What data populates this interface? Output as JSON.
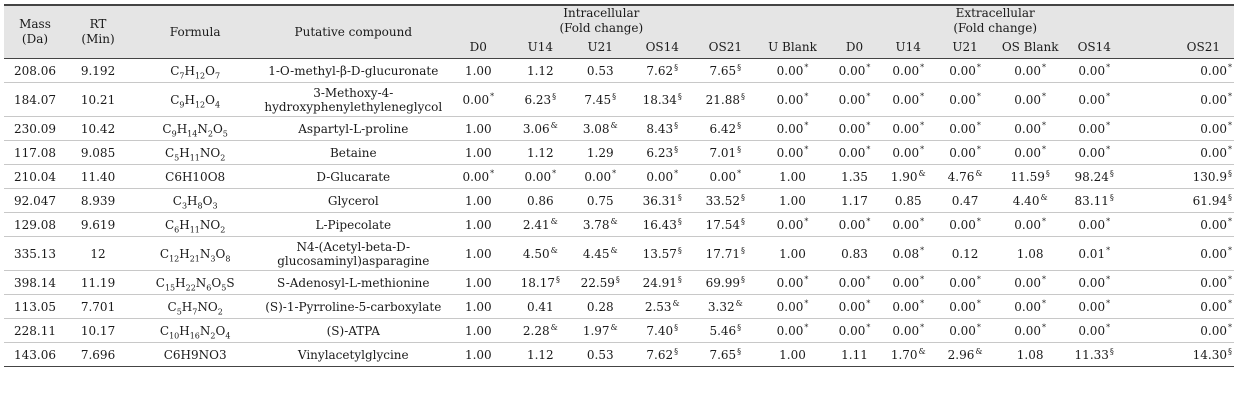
{
  "headers": {
    "mass": "Mass\n(Da)",
    "rt": "RT\n(Min)",
    "formula": "Formula",
    "compound": "Putative compound",
    "intracellular": "Intracellular\n(Fold change)",
    "extracellular": "Extracellular\n(Fold change)",
    "intra_cols": [
      "D0",
      "U14",
      "U21",
      "OS14",
      "OS21"
    ],
    "extra_cols": [
      "U Blank",
      "D0",
      "U14",
      "U21",
      "OS Blank",
      "OS14",
      "OS21"
    ]
  },
  "rows": [
    {
      "mass": "208.06",
      "rt": "9.192",
      "formula": [
        [
          "C",
          ""
        ],
        [
          "7",
          "sub"
        ],
        [
          "H",
          ""
        ],
        [
          "12",
          "sub"
        ],
        [
          "O",
          ""
        ],
        [
          "7",
          "sub"
        ]
      ],
      "compound": "1-O-methyl-β-D-glucuronate",
      "intra": [
        [
          "1.00",
          ""
        ],
        [
          "1.12",
          ""
        ],
        [
          "0.53",
          ""
        ],
        [
          "7.62",
          "§"
        ],
        [
          "7.65",
          "§"
        ]
      ],
      "extra": [
        [
          "0.00",
          "*"
        ],
        [
          "0.00",
          "*"
        ],
        [
          "0.00",
          "*"
        ],
        [
          "0.00",
          "*"
        ],
        [
          "0.00",
          "*"
        ],
        [
          "0.00",
          "*"
        ],
        [
          "0.00",
          "*"
        ]
      ]
    },
    {
      "mass": "184.07",
      "rt": "10.21",
      "formula": [
        [
          "C",
          ""
        ],
        [
          "9",
          "sub"
        ],
        [
          "H",
          ""
        ],
        [
          "12",
          "sub"
        ],
        [
          "O",
          ""
        ],
        [
          "4",
          "sub"
        ]
      ],
      "compound": "3-Methoxy-4-\nhydroxyphenylethyleneglycol",
      "tall": true,
      "intra": [
        [
          "0.00",
          "*"
        ],
        [
          "6.23",
          "§"
        ],
        [
          "7.45",
          "§"
        ],
        [
          "18.34",
          "§"
        ],
        [
          "21.88",
          "§"
        ]
      ],
      "extra": [
        [
          "0.00",
          "*"
        ],
        [
          "0.00",
          "*"
        ],
        [
          "0.00",
          "*"
        ],
        [
          "0.00",
          "*"
        ],
        [
          "0.00",
          "*"
        ],
        [
          "0.00",
          "*"
        ],
        [
          "0.00",
          "*"
        ]
      ]
    },
    {
      "mass": "230.09",
      "rt": "10.42",
      "formula": [
        [
          "C",
          ""
        ],
        [
          "9",
          "sub"
        ],
        [
          "H",
          ""
        ],
        [
          "14",
          "sub"
        ],
        [
          "N",
          ""
        ],
        [
          "2",
          "sub"
        ],
        [
          "O",
          ""
        ],
        [
          "5",
          "sub"
        ]
      ],
      "compound": "Aspartyl-L-proline",
      "intra": [
        [
          "1.00",
          ""
        ],
        [
          "3.06",
          "&"
        ],
        [
          "3.08",
          "&"
        ],
        [
          "8.43",
          "§"
        ],
        [
          "6.42",
          "§"
        ]
      ],
      "extra": [
        [
          "0.00",
          "*"
        ],
        [
          "0.00",
          "*"
        ],
        [
          "0.00",
          "*"
        ],
        [
          "0.00",
          "*"
        ],
        [
          "0.00",
          "*"
        ],
        [
          "0.00",
          "*"
        ],
        [
          "0.00",
          "*"
        ]
      ]
    },
    {
      "mass": "117.08",
      "rt": "9.085",
      "formula": [
        [
          "C",
          ""
        ],
        [
          "5",
          "sub"
        ],
        [
          "H",
          ""
        ],
        [
          "11",
          "sub"
        ],
        [
          "NO",
          ""
        ],
        [
          "2",
          "sub"
        ]
      ],
      "compound": "Betaine",
      "intra": [
        [
          "1.00",
          ""
        ],
        [
          "1.12",
          ""
        ],
        [
          "1.29",
          ""
        ],
        [
          "6.23",
          "§"
        ],
        [
          "7.01",
          "§"
        ]
      ],
      "extra": [
        [
          "0.00",
          "*"
        ],
        [
          "0.00",
          "*"
        ],
        [
          "0.00",
          "*"
        ],
        [
          "0.00",
          "*"
        ],
        [
          "0.00",
          "*"
        ],
        [
          "0.00",
          "*"
        ],
        [
          "0.00",
          "*"
        ]
      ]
    },
    {
      "mass": "210.04",
      "rt": "11.40",
      "formula": [
        [
          "C6H10O8",
          ""
        ]
      ],
      "compound": "D-Glucarate",
      "intra": [
        [
          "0.00",
          "*"
        ],
        [
          "0.00",
          "*"
        ],
        [
          "0.00",
          "*"
        ],
        [
          "0.00",
          "*"
        ],
        [
          "0.00",
          "*"
        ]
      ],
      "extra": [
        [
          "1.00",
          ""
        ],
        [
          "1.35",
          ""
        ],
        [
          "1.90",
          "&"
        ],
        [
          "4.76",
          "&"
        ],
        [
          "11.59",
          "§"
        ],
        [
          "98.24",
          "§"
        ],
        [
          "130.9",
          "§"
        ]
      ]
    },
    {
      "mass": "92.047",
      "rt": "8.939",
      "formula": [
        [
          "C",
          ""
        ],
        [
          "3",
          "sub"
        ],
        [
          "H",
          ""
        ],
        [
          "8",
          "sub"
        ],
        [
          "O",
          ""
        ],
        [
          "3",
          "sub"
        ]
      ],
      "compound": "Glycerol",
      "intra": [
        [
          "1.00",
          ""
        ],
        [
          "0.86",
          ""
        ],
        [
          "0.75",
          ""
        ],
        [
          "36.31",
          "§"
        ],
        [
          "33.52",
          "§"
        ]
      ],
      "extra": [
        [
          "1.00",
          ""
        ],
        [
          "1.17",
          ""
        ],
        [
          "0.85",
          ""
        ],
        [
          "0.47",
          ""
        ],
        [
          "4.40",
          "&"
        ],
        [
          "83.11",
          "§"
        ],
        [
          "61.94",
          "§"
        ]
      ]
    },
    {
      "mass": "129.08",
      "rt": "9.619",
      "formula": [
        [
          "C",
          ""
        ],
        [
          "6",
          "sub"
        ],
        [
          "H",
          ""
        ],
        [
          "11",
          "sub"
        ],
        [
          "NO",
          ""
        ],
        [
          "2",
          "sub"
        ]
      ],
      "compound": "L-Pipecolate",
      "intra": [
        [
          "1.00",
          ""
        ],
        [
          "2.41",
          "&"
        ],
        [
          "3.78",
          "&"
        ],
        [
          "16.43",
          "§"
        ],
        [
          "17.54",
          "§"
        ]
      ],
      "extra": [
        [
          "0.00",
          "*"
        ],
        [
          "0.00",
          "*"
        ],
        [
          "0.00",
          "*"
        ],
        [
          "0.00",
          "*"
        ],
        [
          "0.00",
          "*"
        ],
        [
          "0.00",
          "*"
        ],
        [
          "0.00",
          "*"
        ]
      ]
    },
    {
      "mass": "335.13",
      "rt": "12",
      "formula": [
        [
          "C",
          ""
        ],
        [
          "12",
          "sub"
        ],
        [
          "H",
          ""
        ],
        [
          "21",
          "sub"
        ],
        [
          "N",
          ""
        ],
        [
          "3",
          "sub"
        ],
        [
          "O",
          ""
        ],
        [
          "8",
          "sub"
        ]
      ],
      "compound": "N4-(Acetyl-beta-D-\nglucosaminyl)asparagine",
      "tall": true,
      "intra": [
        [
          "1.00",
          ""
        ],
        [
          "4.50",
          "&"
        ],
        [
          "4.45",
          "&"
        ],
        [
          "13.57",
          "§"
        ],
        [
          "17.71",
          "§"
        ]
      ],
      "extra": [
        [
          "1.00",
          ""
        ],
        [
          "0.83",
          ""
        ],
        [
          "0.08",
          "*"
        ],
        [
          "0.12",
          ""
        ],
        [
          "1.08",
          ""
        ],
        [
          "0.01",
          "*"
        ],
        [
          "0.00",
          "*"
        ]
      ]
    },
    {
      "mass": "398.14",
      "rt": "11.19",
      "formula": [
        [
          "C",
          ""
        ],
        [
          "15",
          "sub"
        ],
        [
          "H",
          ""
        ],
        [
          "22",
          "sub"
        ],
        [
          "N",
          ""
        ],
        [
          "6",
          "sub"
        ],
        [
          "O",
          ""
        ],
        [
          "5",
          "sub"
        ],
        [
          "S",
          ""
        ]
      ],
      "compound": "S-Adenosyl-L-methionine",
      "intra": [
        [
          "1.00",
          ""
        ],
        [
          "18.17",
          "§"
        ],
        [
          "22.59",
          "§"
        ],
        [
          "24.91",
          "§"
        ],
        [
          "69.99",
          "§"
        ]
      ],
      "extra": [
        [
          "0.00",
          "*"
        ],
        [
          "0.00",
          "*"
        ],
        [
          "0.00",
          "*"
        ],
        [
          "0.00",
          "*"
        ],
        [
          "0.00",
          "*"
        ],
        [
          "0.00",
          "*"
        ],
        [
          "0.00",
          "*"
        ]
      ]
    },
    {
      "mass": "113.05",
      "rt": "7.701",
      "formula": [
        [
          "C",
          ""
        ],
        [
          "5",
          "sub"
        ],
        [
          "H",
          ""
        ],
        [
          "7",
          "sub"
        ],
        [
          "NO",
          ""
        ],
        [
          "2",
          "sub"
        ]
      ],
      "compound": "(S)-1-Pyrroline-5-carboxylate",
      "intra": [
        [
          "1.00",
          ""
        ],
        [
          "0.41",
          ""
        ],
        [
          "0.28",
          ""
        ],
        [
          "2.53",
          "&"
        ],
        [
          "3.32",
          "&"
        ]
      ],
      "extra": [
        [
          "0.00",
          "*"
        ],
        [
          "0.00",
          "*"
        ],
        [
          "0.00",
          "*"
        ],
        [
          "0.00",
          "*"
        ],
        [
          "0.00",
          "*"
        ],
        [
          "0.00",
          "*"
        ],
        [
          "0.00",
          "*"
        ]
      ]
    },
    {
      "mass": "228.11",
      "rt": "10.17",
      "formula": [
        [
          "C",
          ""
        ],
        [
          "10",
          "sub"
        ],
        [
          "H",
          ""
        ],
        [
          "16",
          "sub"
        ],
        [
          "N",
          ""
        ],
        [
          "2",
          "sub"
        ],
        [
          "O",
          ""
        ],
        [
          "4",
          "sub"
        ]
      ],
      "compound": "(S)-ATPA",
      "intra": [
        [
          "1.00",
          ""
        ],
        [
          "2.28",
          "&"
        ],
        [
          "1.97",
          "&"
        ],
        [
          "7.40",
          "§"
        ],
        [
          "5.46",
          "§"
        ]
      ],
      "extra": [
        [
          "0.00",
          "*"
        ],
        [
          "0.00",
          "*"
        ],
        [
          "0.00",
          "*"
        ],
        [
          "0.00",
          "*"
        ],
        [
          "0.00",
          "*"
        ],
        [
          "0.00",
          "*"
        ],
        [
          "0.00",
          "*"
        ]
      ]
    },
    {
      "mass": "143.06",
      "rt": "7.696",
      "formula": [
        [
          "C6H9NO3",
          ""
        ]
      ],
      "compound": "Vinylacetylglycine",
      "intra": [
        [
          "1.00",
          ""
        ],
        [
          "1.12",
          ""
        ],
        [
          "0.53",
          ""
        ],
        [
          "7.62",
          "§"
        ],
        [
          "7.65",
          "§"
        ]
      ],
      "extra": [
        [
          "1.00",
          ""
        ],
        [
          "1.11",
          ""
        ],
        [
          "1.70",
          "&"
        ],
        [
          "2.96",
          "&"
        ],
        [
          "1.08",
          ""
        ],
        [
          "11.33",
          "§"
        ],
        [
          "14.30",
          "§"
        ]
      ]
    }
  ]
}
